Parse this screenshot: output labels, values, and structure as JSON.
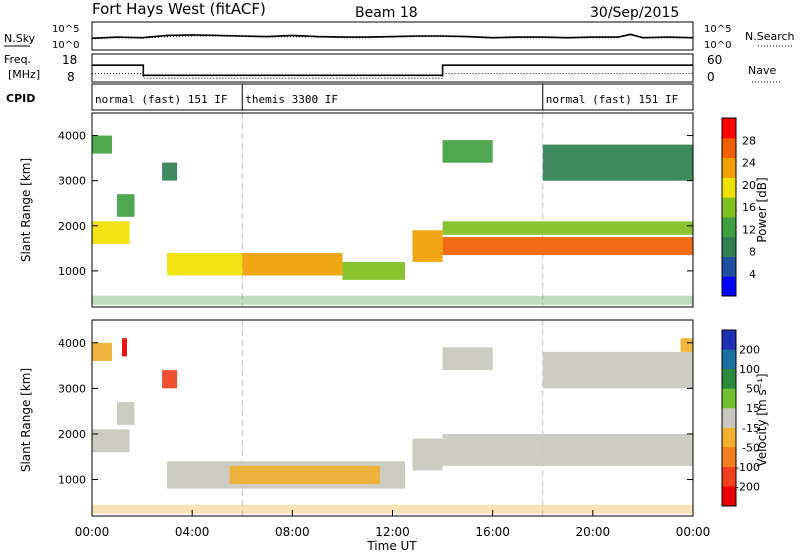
{
  "header": {
    "station": "Fort Hays West (fitACF)",
    "beam": "Beam 18",
    "date": "30/Sep/2015"
  },
  "time_axis": {
    "label": "Time UT",
    "ticks": [
      "00:00",
      "04:00",
      "08:00",
      "12:00",
      "16:00",
      "20:00",
      "00:00"
    ],
    "range_hours": [
      0,
      24
    ]
  },
  "noise_panel": {
    "left_label": "N.Sky",
    "right_label": "N.Search",
    "left_ticks": [
      "10^5",
      "10^0"
    ],
    "right_ticks": [
      "10^5",
      "10^0"
    ]
  },
  "freq_panel": {
    "left_label_1": "Freq.",
    "left_label_2": "[MHz]",
    "right_label": "Nave",
    "left_ticks": [
      "18",
      "8"
    ],
    "right_ticks": [
      "60",
      "0"
    ]
  },
  "cpid_panel": {
    "label": "CPID",
    "segments": [
      {
        "name": "normal (fast) 151 IF",
        "start_hour": 0,
        "end_hour": 6
      },
      {
        "name": "themis 3300 IF",
        "start_hour": 6,
        "end_hour": 18
      },
      {
        "name": "normal (fast) 151 IF",
        "start_hour": 18,
        "end_hour": 24
      }
    ]
  },
  "power_panel": {
    "ylabel": "Slant Range [km]",
    "yticks": [
      "1000",
      "2000",
      "3000",
      "4000"
    ],
    "colorbar_label": "Power [dB]",
    "colorbar_ticks": [
      "4",
      "8",
      "12",
      "16",
      "20",
      "24",
      "28"
    ]
  },
  "velocity_panel": {
    "ylabel": "Slant Range [km]",
    "yticks": [
      "1000",
      "2000",
      "3000",
      "4000"
    ],
    "colorbar_label": "Velocity [m s⁻¹]",
    "colorbar_ticks": [
      "200",
      "100",
      "50",
      "15",
      "-15",
      "-50",
      "-100",
      "-200"
    ]
  },
  "colors": {
    "power_scale": [
      "#0000ff",
      "#1f4fa0",
      "#2f8050",
      "#40a040",
      "#80c020",
      "#f0e000",
      "#f0a000",
      "#f06000",
      "#ff0000"
    ],
    "velocity_scale": [
      "#1c2fb0",
      "#1a6fa0",
      "#2a8a3a",
      "#70c030",
      "#c8c8be",
      "#f0b030",
      "#f08020",
      "#f04020",
      "#e80000"
    ],
    "ground_scatter": "#c8c8be"
  },
  "chart_data": [
    {
      "type": "line",
      "title": "N.Sky / N.Search",
      "x_hours": [
        0,
        0.5,
        1,
        2,
        3,
        4,
        5,
        6,
        7,
        8,
        9,
        10,
        11,
        12,
        13,
        14,
        15,
        16,
        17,
        18,
        19,
        20,
        21,
        21.5,
        22,
        23,
        24
      ],
      "series": [
        {
          "name": "N.Sky",
          "values_log10": [
            2.1,
            2.2,
            2.3,
            2.2,
            2.6,
            2.7,
            2.6,
            2.5,
            2.4,
            2.6,
            2.4,
            2.3,
            2.3,
            2.4,
            2.5,
            2.5,
            2.4,
            2.2,
            2.3,
            2.3,
            2.2,
            2.3,
            2.3,
            2.8,
            2.2,
            2.3,
            2.2
          ]
        },
        {
          "name": "N.Search",
          "values_log10": [
            2.0,
            2.1,
            2.2,
            2.1,
            2.4,
            2.5,
            2.5,
            2.4,
            2.3,
            2.4,
            2.3,
            2.2,
            2.2,
            2.3,
            2.4,
            2.4,
            2.3,
            2.1,
            2.2,
            2.2,
            2.1,
            2.2,
            2.2,
            2.7,
            2.1,
            2.2,
            2.1
          ]
        }
      ],
      "ylim_log10": [
        0,
        5
      ]
    },
    {
      "type": "line",
      "title": "Freq. / Nave",
      "series": [
        {
          "name": "Freq. [MHz]",
          "x_hours": [
            0,
            2.05,
            2.05,
            14,
            14,
            24
          ],
          "values": [
            14.0,
            14.0,
            10.4,
            10.4,
            14.0,
            14.0
          ]
        },
        {
          "name": "Nave",
          "x_hours": [
            0,
            2.05,
            2.05,
            14,
            14,
            24
          ],
          "values": [
            18,
            18,
            8,
            8,
            18,
            18
          ]
        }
      ],
      "ylim_left": [
        8,
        18
      ],
      "ylim_right": [
        0,
        60
      ]
    },
    {
      "type": "heatmap",
      "title": "Power [dB]",
      "xlabel": "Time UT",
      "ylabel": "Slant Range [km]",
      "xlim_hours": [
        0,
        24
      ],
      "ylim_km": [
        200,
        4500
      ],
      "clim": [
        0,
        30
      ],
      "regions": [
        {
          "t0": 0.0,
          "t1": 1.5,
          "r0": 1600,
          "r1": 2100,
          "power_db": 18
        },
        {
          "t0": 1.0,
          "t1": 1.7,
          "r0": 2200,
          "r1": 2700,
          "power_db": 12
        },
        {
          "t0": 0.0,
          "t1": 0.8,
          "r0": 3600,
          "r1": 4000,
          "power_db": 10
        },
        {
          "t0": 2.8,
          "t1": 3.4,
          "r0": 3000,
          "r1": 3400,
          "power_db": 8
        },
        {
          "t0": 3.0,
          "t1": 6.0,
          "r0": 900,
          "r1": 1400,
          "power_db": 20
        },
        {
          "t0": 6.0,
          "t1": 10.0,
          "r0": 900,
          "r1": 1400,
          "power_db": 22
        },
        {
          "t0": 10.0,
          "t1": 12.5,
          "r0": 800,
          "r1": 1200,
          "power_db": 16
        },
        {
          "t0": 12.8,
          "t1": 14.0,
          "r0": 1200,
          "r1": 1900,
          "power_db": 22
        },
        {
          "t0": 14.0,
          "t1": 24.0,
          "r0": 1350,
          "r1": 1750,
          "power_db": 28
        },
        {
          "t0": 14.0,
          "t1": 24.0,
          "r0": 1800,
          "r1": 2100,
          "power_db": 14
        },
        {
          "t0": 14.0,
          "t1": 16.0,
          "r0": 3400,
          "r1": 3900,
          "power_db": 10
        },
        {
          "t0": 18.0,
          "t1": 24.0,
          "r0": 3000,
          "r1": 3800,
          "power_db": 8
        }
      ]
    },
    {
      "type": "heatmap",
      "title": "Velocity [m s⁻¹]",
      "xlabel": "Time UT",
      "ylabel": "Slant Range [km]",
      "xlim_hours": [
        0,
        24
      ],
      "ylim_km": [
        200,
        4500
      ],
      "clim": [
        -200,
        200
      ],
      "regions": [
        {
          "t0": 0.0,
          "t1": 1.5,
          "r0": 1600,
          "r1": 2100,
          "velocity": 0,
          "ground_scatter": true
        },
        {
          "t0": 1.0,
          "t1": 1.7,
          "r0": 2200,
          "r1": 2700,
          "velocity": 0,
          "ground_scatter": true
        },
        {
          "t0": 0.0,
          "t1": 0.8,
          "r0": 3600,
          "r1": 4000,
          "velocity": -60
        },
        {
          "t0": 1.2,
          "t1": 1.4,
          "r0": 3700,
          "r1": 4100,
          "velocity": -180
        },
        {
          "t0": 2.8,
          "t1": 3.4,
          "r0": 3000,
          "r1": 3400,
          "velocity": -150
        },
        {
          "t0": 3.0,
          "t1": 12.5,
          "r0": 800,
          "r1": 1400,
          "velocity": 0,
          "ground_scatter": true
        },
        {
          "t0": 5.5,
          "t1": 11.5,
          "r0": 900,
          "r1": 1300,
          "velocity": -30
        },
        {
          "t0": 12.8,
          "t1": 14.0,
          "r0": 1200,
          "r1": 1900,
          "velocity": 0,
          "ground_scatter": true
        },
        {
          "t0": 14.0,
          "t1": 24.0,
          "r0": 1300,
          "r1": 2000,
          "velocity": 0,
          "ground_scatter": true
        },
        {
          "t0": 14.0,
          "t1": 16.0,
          "r0": 3400,
          "r1": 3900,
          "velocity": 0,
          "ground_scatter": true
        },
        {
          "t0": 18.0,
          "t1": 24.0,
          "r0": 3000,
          "r1": 3800,
          "velocity": 0,
          "ground_scatter": true
        },
        {
          "t0": 23.5,
          "t1": 24.0,
          "r0": 3800,
          "r1": 4100,
          "velocity": -70
        }
      ]
    }
  ]
}
